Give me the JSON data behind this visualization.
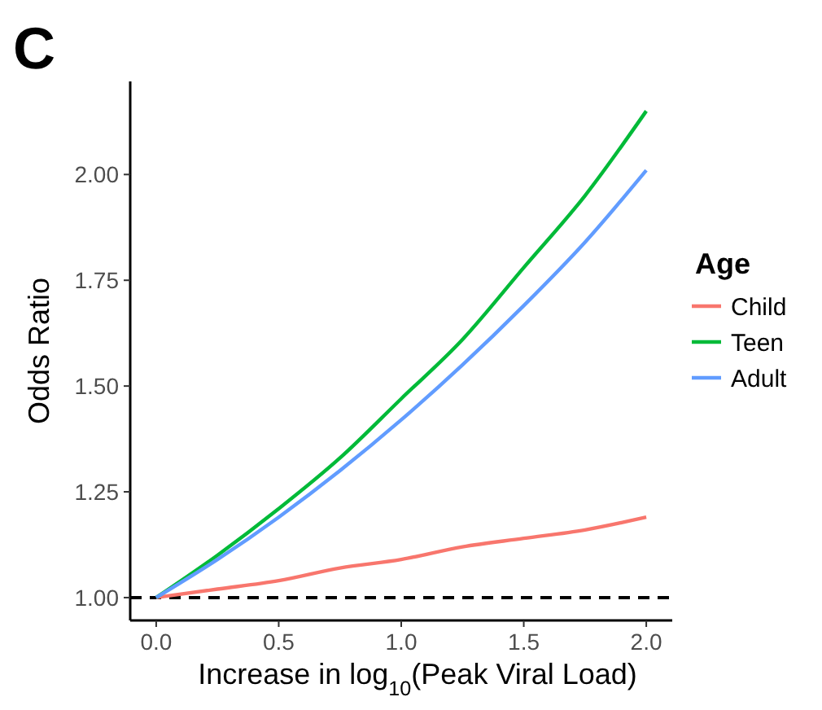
{
  "chart_data": {
    "type": "line",
    "title": "C",
    "xlabel": "Increase in log$_{10}$(Peak Viral Load)",
    "ylabel": "Odds Ratio",
    "legend_title": "Age",
    "legend": "right",
    "grid": false,
    "line_style": "solid",
    "x": [
      0,
      0.25,
      0.5,
      0.75,
      1,
      1.25,
      1.5,
      1.75,
      2
    ],
    "series": [
      {
        "name": "Child",
        "color": "#f8766d",
        "values": [
          1,
          1.02,
          1.04,
          1.07,
          1.09,
          1.12,
          1.14,
          1.16,
          1.19
        ]
      },
      {
        "name": "Teen",
        "color": "#00ba38",
        "values": [
          1,
          1.1,
          1.21,
          1.33,
          1.47,
          1.61,
          1.78,
          1.95,
          2.15
        ]
      },
      {
        "name": "Adult",
        "color": "#619cff",
        "values": [
          1,
          1.09,
          1.19,
          1.3,
          1.42,
          1.55,
          1.69,
          1.84,
          2.01
        ]
      }
    ],
    "xlim": [
      -0.106,
      2.106
    ],
    "ylim": [
      0.946,
      2.22
    ],
    "xticks": [
      {
        "value": 0,
        "label": "0.0"
      },
      0.5,
      {
        "value": 1,
        "label": "1.0"
      },
      1.5,
      {
        "value": 2,
        "label": "2.0"
      }
    ],
    "yticks": [
      {
        "value": 1,
        "label": "1.00"
      },
      1.25,
      {
        "value": 1.5,
        "label": "1.50"
      },
      1.75,
      {
        "value": 2,
        "label": "2.00"
      }
    ],
    "ref_lines": [
      {
        "axis": "y",
        "value": 1,
        "color": "#000000",
        "line_style": "dashed"
      }
    ]
  }
}
